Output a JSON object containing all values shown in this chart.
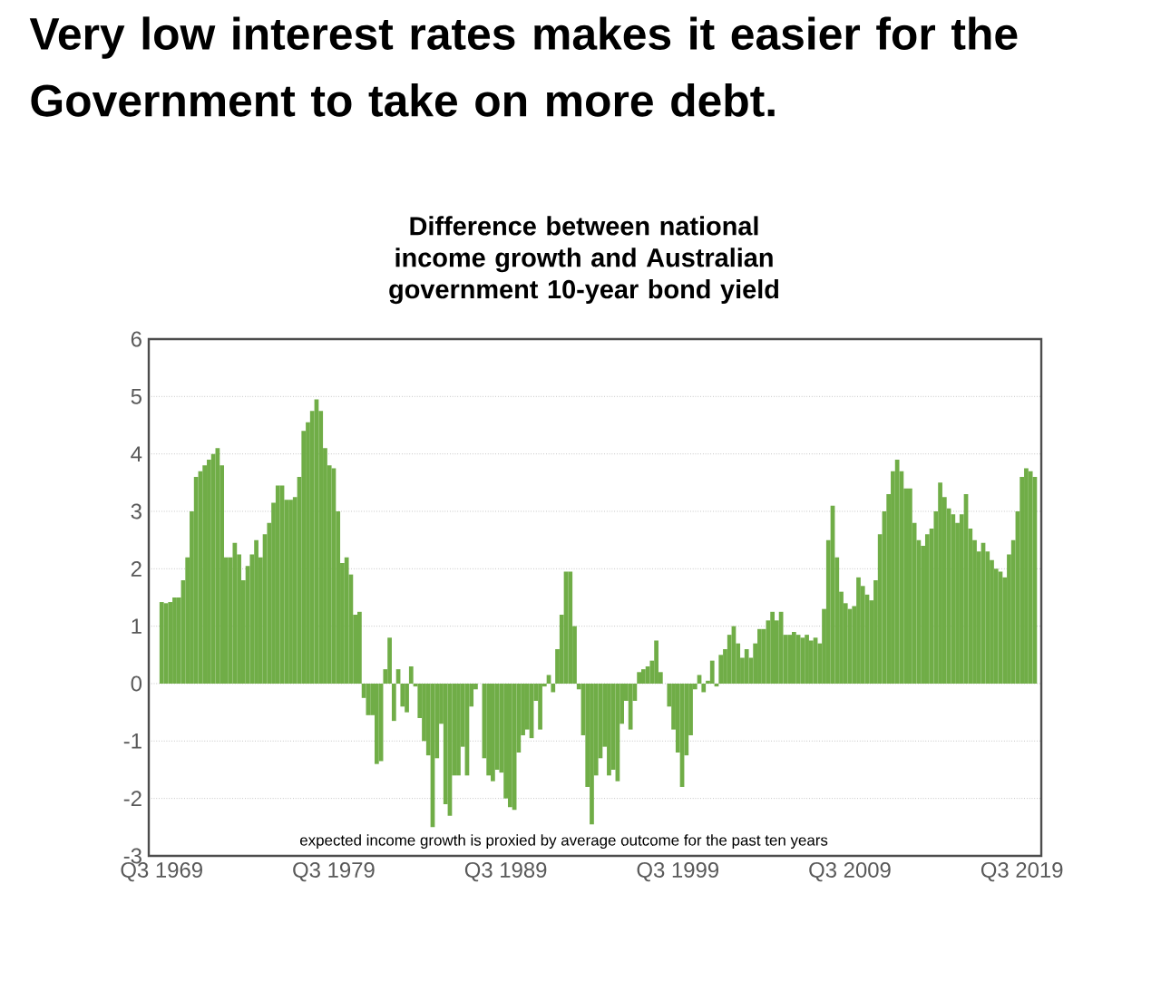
{
  "chart_data": {
    "type": "bar",
    "title": "Very low interest rates makes it easier for the Government to take on more debt.",
    "subtitle": "Difference between national income growth and  Australian government 10-year bond yield",
    "categories": [
      "Q3 1969",
      null,
      null,
      null,
      null,
      null,
      null,
      null,
      null,
      null,
      null,
      null,
      null,
      null,
      null,
      null,
      null,
      null,
      null,
      null,
      null,
      null,
      null,
      null,
      null,
      null,
      null,
      null,
      null,
      null,
      null,
      null,
      null,
      null,
      null,
      null,
      null,
      null,
      null,
      null,
      "Q3 1979",
      null,
      null,
      null,
      null,
      null,
      null,
      null,
      null,
      null,
      null,
      null,
      null,
      null,
      null,
      null,
      null,
      null,
      null,
      null,
      null,
      null,
      null,
      null,
      null,
      null,
      null,
      null,
      null,
      null,
      null,
      null,
      null,
      null,
      null,
      null,
      null,
      null,
      null,
      null,
      "Q3 1989",
      null,
      null,
      null,
      null,
      null,
      null,
      null,
      null,
      null,
      null,
      null,
      null,
      null,
      null,
      null,
      null,
      null,
      null,
      null,
      null,
      null,
      null,
      null,
      null,
      null,
      null,
      null,
      null,
      null,
      null,
      null,
      null,
      null,
      null,
      null,
      null,
      null,
      null,
      null,
      "Q3 1999",
      null,
      null,
      null,
      null,
      null,
      null,
      null,
      null,
      null,
      null,
      null,
      null,
      null,
      null,
      null,
      null,
      null,
      null,
      null,
      null,
      null,
      null,
      null,
      null,
      null,
      null,
      null,
      null,
      null,
      null,
      null,
      null,
      null,
      null,
      null,
      null,
      null,
      null,
      null,
      "Q3 2009",
      null,
      null,
      null,
      null,
      null,
      null,
      null,
      null,
      null,
      null,
      null,
      null,
      null,
      null,
      null,
      null,
      null,
      null,
      null,
      null,
      null,
      null,
      null,
      null,
      null,
      null,
      null,
      null,
      null,
      null,
      null,
      null,
      null,
      null,
      null,
      null,
      null,
      null,
      null,
      "Q3 2019",
      null,
      null,
      null
    ],
    "values": [
      1.42,
      1.4,
      1.42,
      1.5,
      1.5,
      1.8,
      2.2,
      3.0,
      3.6,
      3.7,
      3.8,
      3.9,
      4.0,
      4.1,
      3.8,
      2.2,
      2.2,
      2.45,
      2.25,
      1.8,
      2.05,
      2.25,
      2.5,
      2.2,
      2.6,
      2.8,
      3.15,
      3.45,
      3.45,
      3.2,
      3.2,
      3.25,
      3.6,
      4.4,
      4.55,
      4.75,
      4.95,
      4.75,
      4.1,
      3.8,
      3.75,
      3.0,
      2.1,
      2.2,
      1.9,
      1.2,
      1.25,
      -0.25,
      -0.55,
      -0.55,
      -1.4,
      -1.35,
      0.25,
      0.8,
      -0.65,
      0.25,
      -0.4,
      -0.5,
      0.3,
      -0.05,
      -0.6,
      -1.0,
      -1.25,
      -2.5,
      -1.3,
      -0.7,
      -2.1,
      -2.3,
      -1.6,
      -1.6,
      -1.1,
      -1.6,
      -0.4,
      -0.1,
      0,
      -1.3,
      -1.6,
      -1.7,
      -1.5,
      -1.55,
      -2.0,
      -2.15,
      -2.2,
      -1.2,
      -0.9,
      -0.8,
      -0.95,
      -0.3,
      -0.8,
      -0.05,
      0.15,
      -0.15,
      0.6,
      1.2,
      1.95,
      1.95,
      1.0,
      -0.1,
      -0.9,
      -1.8,
      -2.45,
      -1.6,
      -1.3,
      -1.1,
      -1.6,
      -1.5,
      -1.7,
      -0.7,
      -0.3,
      -0.8,
      -0.3,
      0.2,
      0.25,
      0.3,
      0.4,
      0.75,
      0.2,
      0,
      -0.4,
      -0.8,
      -1.2,
      -1.8,
      -1.25,
      -0.9,
      -0.1,
      0.15,
      -0.15,
      0.05,
      0.4,
      -0.05,
      0.5,
      0.6,
      0.85,
      1.0,
      0.7,
      0.45,
      0.6,
      0.45,
      0.7,
      0.95,
      0.95,
      1.1,
      1.25,
      1.1,
      1.25,
      0.85,
      0.85,
      0.9,
      0.85,
      0.8,
      0.85,
      0.75,
      0.8,
      0.7,
      1.3,
      2.5,
      3.1,
      2.2,
      1.6,
      1.4,
      1.3,
      1.35,
      1.85,
      1.7,
      1.55,
      1.45,
      1.8,
      2.6,
      3.0,
      3.3,
      3.7,
      3.9,
      3.7,
      3.4,
      3.4,
      2.8,
      2.5,
      2.4,
      2.6,
      2.7,
      3.0,
      3.5,
      3.25,
      3.05,
      2.95,
      2.8,
      2.95,
      3.3,
      2.7,
      2.5,
      2.3,
      2.45,
      2.3,
      2.15,
      2.0,
      1.95,
      1.85,
      2.25,
      2.5,
      3.0,
      3.6,
      3.75,
      3.7,
      3.6
    ],
    "color": "#70ad47",
    "ylim": [
      -3,
      6
    ],
    "yticks": [
      -3,
      -2,
      -1,
      0,
      1,
      2,
      3,
      4,
      5,
      6
    ],
    "grid": "y",
    "annotations": [
      "expected income growth  is proxied by average outcome for the past ten years"
    ]
  }
}
